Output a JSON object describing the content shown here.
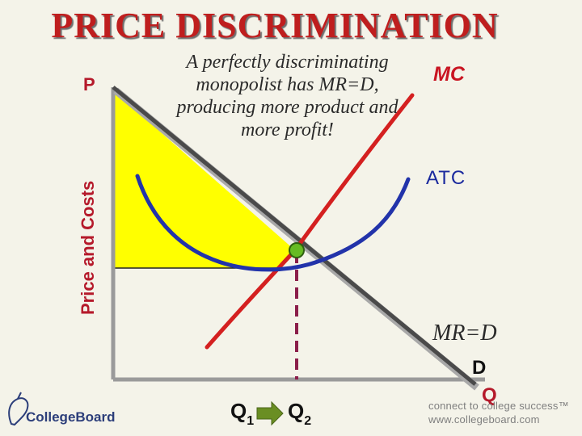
{
  "title": "PRICE DISCRIMINATION",
  "y_axis_label": "Price and Costs",
  "y_axis_symbol": "P",
  "x_axis_symbol": "Q",
  "note": "A perfectly discriminating monopolist has MR=D, producing more product and more profit!",
  "curves": {
    "mc": "MC",
    "atc": "ATC",
    "mr_d": "MR=D",
    "d": "D"
  },
  "quantities": {
    "q1": "Q",
    "q1_sub": "1",
    "q2": "Q",
    "q2_sub": "2"
  },
  "branding": {
    "logo_text": "CollegeBoard",
    "footer_line1": "connect to college success™",
    "footer_line2": "www.collegeboard.com"
  },
  "colors": {
    "profit_area": "#ffff00",
    "mc_curve": "#d42020",
    "atc_curve": "#2233aa",
    "demand_curve": "#505050",
    "equilibrium_point": "#66bb22",
    "q_line": "#8b1e4a",
    "arrow": "#6a8e23"
  }
}
